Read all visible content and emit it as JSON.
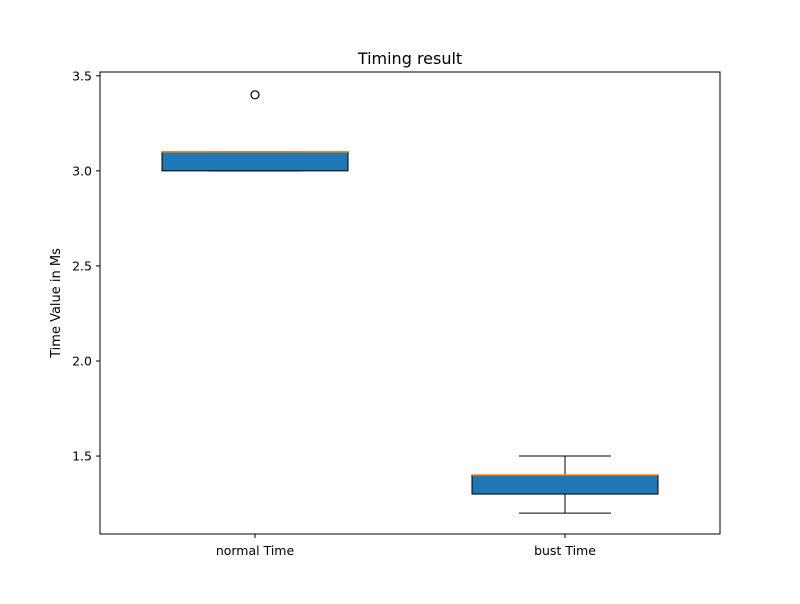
{
  "chart_data": {
    "type": "box",
    "title": "Timing result",
    "xlabel": "",
    "ylabel": "Time Value in Ms",
    "ylim": [
      1.09,
      3.52
    ],
    "yticks": [
      1.5,
      2.0,
      2.5,
      3.0,
      3.5
    ],
    "ytick_labels": [
      "1.5",
      "2.0",
      "2.5",
      "3.0",
      "3.5"
    ],
    "grid": false,
    "categories": [
      "normal Time",
      "bust Time"
    ],
    "boxes": [
      {
        "name": "normal Time",
        "whisker_low": 3.0,
        "q1": 3.0,
        "median": 3.1,
        "q3": 3.1,
        "whisker_high": 3.1,
        "outliers": [
          3.4
        ]
      },
      {
        "name": "bust Time",
        "whisker_low": 1.2,
        "q1": 1.3,
        "median": 1.4,
        "q3": 1.4,
        "whisker_high": 1.5,
        "outliers": []
      }
    ],
    "colors": {
      "box_fill": "#1f77b4",
      "median": "#ff7f0e",
      "edge": "#000000"
    }
  }
}
